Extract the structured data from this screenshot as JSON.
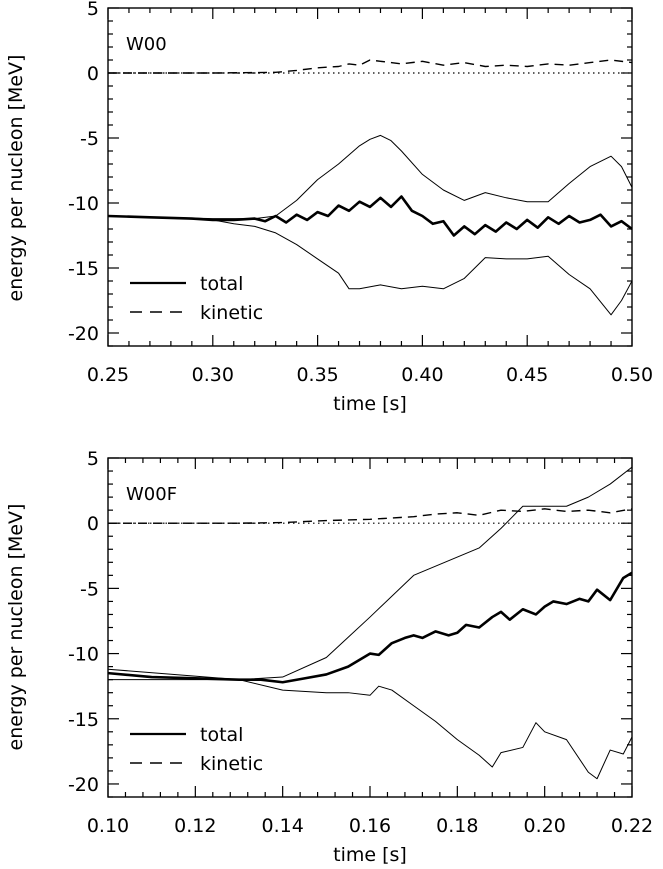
{
  "chart_data": [
    {
      "type": "line",
      "panel_label": "W00",
      "xlabel": "time [s]",
      "ylabel": "energy per nucleon [MeV]",
      "xlim": [
        0.25,
        0.5
      ],
      "ylim": [
        -21,
        5
      ],
      "xticks": [
        0.25,
        0.3,
        0.35,
        0.4,
        0.45,
        0.5
      ],
      "xtick_labels": [
        "0.25",
        "0.30",
        "0.35",
        "0.40",
        "0.45",
        "0.50"
      ],
      "yticks": [
        5,
        0,
        -5,
        -10,
        -15,
        -20
      ],
      "ytick_labels": [
        "5",
        "0",
        "-5",
        "-10",
        "-15",
        "-20"
      ],
      "legend": {
        "position": "bottom-left",
        "entries": [
          "total",
          "kinetic"
        ]
      },
      "series": [
        {
          "role": "total",
          "x": [
            0.25,
            0.27,
            0.29,
            0.3,
            0.31,
            0.32,
            0.325,
            0.33,
            0.335,
            0.34,
            0.345,
            0.35,
            0.355,
            0.36,
            0.365,
            0.37,
            0.375,
            0.38,
            0.385,
            0.39,
            0.395,
            0.4,
            0.405,
            0.41,
            0.415,
            0.42,
            0.425,
            0.43,
            0.435,
            0.44,
            0.445,
            0.45,
            0.455,
            0.46,
            0.465,
            0.47,
            0.475,
            0.48,
            0.485,
            0.49,
            0.495,
            0.5
          ],
          "values": [
            -11.0,
            -11.1,
            -11.2,
            -11.3,
            -11.3,
            -11.2,
            -11.4,
            -11.0,
            -11.5,
            -10.9,
            -11.3,
            -10.7,
            -11.0,
            -10.2,
            -10.6,
            -9.9,
            -10.3,
            -9.6,
            -10.3,
            -9.5,
            -10.6,
            -11.0,
            -11.6,
            -11.4,
            -12.5,
            -11.8,
            -12.4,
            -11.7,
            -12.2,
            -11.5,
            -12.0,
            -11.3,
            -11.9,
            -11.1,
            -11.6,
            -11.0,
            -11.5,
            -11.3,
            -10.9,
            -11.8,
            -11.4,
            -12.0
          ]
        },
        {
          "role": "kinetic",
          "x": [
            0.25,
            0.3,
            0.33,
            0.34,
            0.35,
            0.36,
            0.365,
            0.37,
            0.375,
            0.38,
            0.39,
            0.4,
            0.41,
            0.42,
            0.43,
            0.44,
            0.45,
            0.46,
            0.47,
            0.48,
            0.49,
            0.5
          ],
          "values": [
            0.0,
            0.0,
            0.05,
            0.2,
            0.4,
            0.5,
            0.7,
            0.6,
            1.0,
            0.9,
            0.7,
            0.9,
            0.6,
            0.8,
            0.5,
            0.6,
            0.5,
            0.7,
            0.6,
            0.8,
            1.0,
            0.8
          ]
        },
        {
          "role": "upper-envelope",
          "x": [
            0.25,
            0.3,
            0.32,
            0.33,
            0.34,
            0.35,
            0.36,
            0.37,
            0.375,
            0.38,
            0.385,
            0.39,
            0.4,
            0.41,
            0.42,
            0.43,
            0.44,
            0.45,
            0.46,
            0.47,
            0.48,
            0.49,
            0.495,
            0.5
          ],
          "values": [
            -11.0,
            -11.2,
            -11.2,
            -11.0,
            -9.8,
            -8.2,
            -7.0,
            -5.6,
            -5.1,
            -4.8,
            -5.2,
            -6.0,
            -7.8,
            -9.0,
            -9.8,
            -9.2,
            -9.6,
            -9.9,
            -9.9,
            -8.5,
            -7.2,
            -6.4,
            -7.2,
            -8.8
          ]
        },
        {
          "role": "lower-envelope",
          "x": [
            0.25,
            0.3,
            0.31,
            0.32,
            0.33,
            0.34,
            0.35,
            0.36,
            0.365,
            0.37,
            0.38,
            0.39,
            0.4,
            0.41,
            0.42,
            0.43,
            0.44,
            0.45,
            0.46,
            0.47,
            0.48,
            0.485,
            0.49,
            0.495,
            0.5
          ],
          "values": [
            -11.0,
            -11.3,
            -11.6,
            -11.8,
            -12.3,
            -13.2,
            -14.3,
            -15.4,
            -16.6,
            -16.6,
            -16.3,
            -16.6,
            -16.4,
            -16.6,
            -15.8,
            -14.2,
            -14.3,
            -14.3,
            -14.1,
            -15.5,
            -16.6,
            -17.6,
            -18.6,
            -17.5,
            -16.0
          ]
        }
      ]
    },
    {
      "type": "line",
      "panel_label": "W00F",
      "xlabel": "time [s]",
      "ylabel": "energy per nucleon [MeV]",
      "xlim": [
        0.1,
        0.22
      ],
      "ylim": [
        -21,
        5
      ],
      "xticks": [
        0.1,
        0.12,
        0.14,
        0.16,
        0.18,
        0.2,
        0.22
      ],
      "xtick_labels": [
        "0.10",
        "0.12",
        "0.14",
        "0.16",
        "0.18",
        "0.20",
        "0.22"
      ],
      "yticks": [
        5,
        0,
        -5,
        -10,
        -15,
        -20
      ],
      "ytick_labels": [
        "5",
        "0",
        "-5",
        "-10",
        "-15",
        "-20"
      ],
      "legend": {
        "position": "bottom-left",
        "entries": [
          "total",
          "kinetic"
        ]
      },
      "series": [
        {
          "role": "total",
          "x": [
            0.1,
            0.11,
            0.12,
            0.13,
            0.135,
            0.14,
            0.145,
            0.15,
            0.155,
            0.16,
            0.162,
            0.165,
            0.168,
            0.17,
            0.172,
            0.175,
            0.178,
            0.18,
            0.182,
            0.185,
            0.188,
            0.19,
            0.192,
            0.195,
            0.198,
            0.2,
            0.202,
            0.205,
            0.208,
            0.21,
            0.212,
            0.215,
            0.218,
            0.22
          ],
          "values": [
            -11.5,
            -11.8,
            -11.9,
            -12.0,
            -12.0,
            -12.2,
            -11.9,
            -11.6,
            -11.0,
            -10.0,
            -10.1,
            -9.2,
            -8.8,
            -8.6,
            -8.8,
            -8.3,
            -8.6,
            -8.4,
            -7.8,
            -8.0,
            -7.2,
            -6.8,
            -7.4,
            -6.6,
            -7.0,
            -6.4,
            -6.0,
            -6.2,
            -5.8,
            -6.0,
            -5.1,
            -5.9,
            -4.2,
            -3.8
          ]
        },
        {
          "role": "kinetic",
          "x": [
            0.1,
            0.13,
            0.14,
            0.15,
            0.16,
            0.17,
            0.175,
            0.18,
            0.185,
            0.19,
            0.195,
            0.2,
            0.205,
            0.21,
            0.215,
            0.22
          ],
          "values": [
            0.0,
            0.0,
            0.05,
            0.2,
            0.3,
            0.5,
            0.7,
            0.8,
            0.6,
            1.0,
            0.9,
            1.1,
            0.9,
            1.0,
            0.8,
            1.1
          ]
        },
        {
          "role": "upper-envelope",
          "x": [
            0.1,
            0.13,
            0.14,
            0.15,
            0.16,
            0.17,
            0.18,
            0.185,
            0.19,
            0.195,
            0.2,
            0.205,
            0.21,
            0.215,
            0.22
          ],
          "values": [
            -12.0,
            -12.0,
            -11.8,
            -10.3,
            -7.2,
            -4.0,
            -2.6,
            -1.9,
            -0.4,
            1.3,
            1.3,
            1.3,
            2.0,
            3.0,
            4.3
          ]
        },
        {
          "role": "lower-envelope",
          "x": [
            0.1,
            0.13,
            0.14,
            0.15,
            0.155,
            0.16,
            0.162,
            0.165,
            0.17,
            0.175,
            0.18,
            0.185,
            0.188,
            0.19,
            0.195,
            0.198,
            0.2,
            0.205,
            0.21,
            0.212,
            0.215,
            0.218,
            0.22
          ],
          "values": [
            -11.2,
            -12.0,
            -12.8,
            -13.0,
            -13.0,
            -13.2,
            -12.5,
            -12.8,
            -14.0,
            -15.2,
            -16.6,
            -17.8,
            -18.7,
            -17.6,
            -17.2,
            -15.3,
            -16.0,
            -16.6,
            -19.1,
            -19.6,
            -17.4,
            -17.7,
            -16.4
          ]
        }
      ]
    }
  ]
}
